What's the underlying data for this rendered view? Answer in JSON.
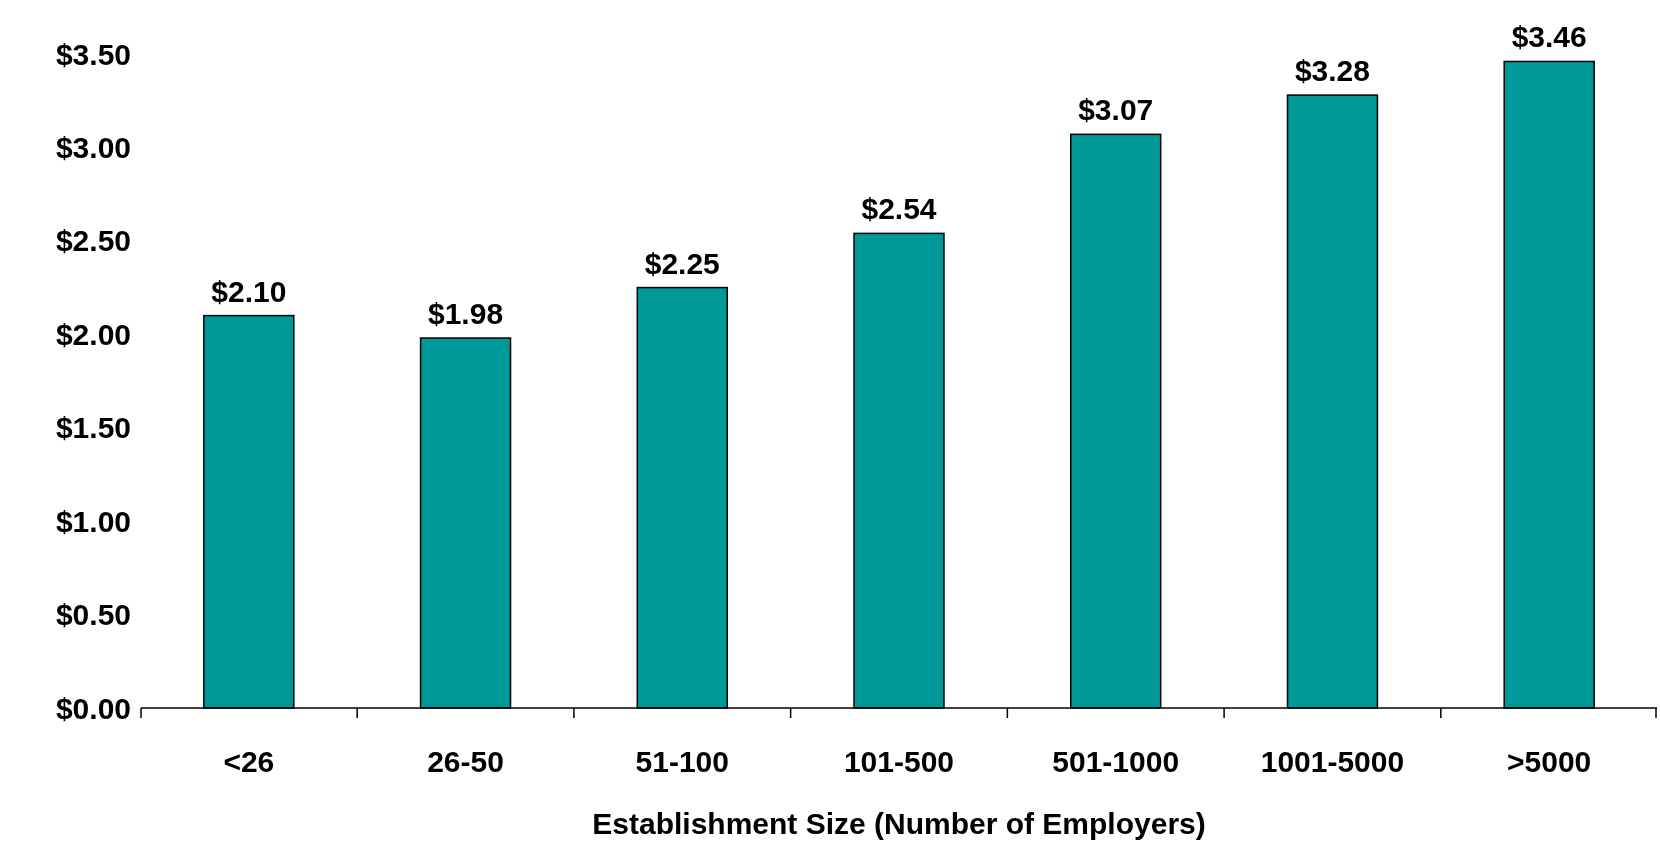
{
  "chart_data": {
    "type": "bar",
    "xlabel": "Establishment Size (Number of Employers)",
    "categories": [
      "<26",
      "26-50",
      "51-100",
      "101-500",
      "501-1000",
      "1001-5000",
      ">5000"
    ],
    "values": [
      2.1,
      1.98,
      2.25,
      2.54,
      3.07,
      3.28,
      3.46
    ],
    "value_labels": [
      "$2.10",
      "$1.98",
      "$2.25",
      "$2.54",
      "$3.07",
      "$3.28",
      "$3.46"
    ],
    "color": "#009999",
    "ylim": [
      0,
      3.5
    ],
    "yticks": [
      {
        "value": 0,
        "label": "$0.00"
      },
      {
        "value": 0.5,
        "label": "$0.50"
      },
      {
        "value": 1,
        "label": "$1.00"
      },
      {
        "value": 1.5,
        "label": "$1.50"
      },
      {
        "value": 2,
        "label": "$2.00"
      },
      {
        "value": 2.5,
        "label": "$2.50"
      },
      {
        "value": 3,
        "label": "$3.00"
      },
      {
        "value": 3.5,
        "label": "$3.50"
      }
    ],
    "grid": false
  }
}
